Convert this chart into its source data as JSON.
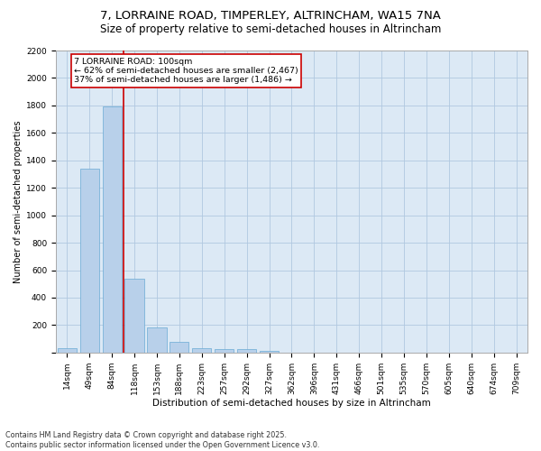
{
  "title": "7, LORRAINE ROAD, TIMPERLEY, ALTRINCHAM, WA15 7NA",
  "subtitle": "Size of property relative to semi-detached houses in Altrincham",
  "xlabel": "Distribution of semi-detached houses by size in Altrincham",
  "ylabel": "Number of semi-detached properties",
  "bar_color": "#b8d0ea",
  "bar_edge_color": "#6aaad4",
  "background_color": "#ffffff",
  "plot_bg_color": "#dce9f5",
  "grid_color": "#b0c8e0",
  "bin_labels": [
    "14sqm",
    "49sqm",
    "84sqm",
    "118sqm",
    "153sqm",
    "188sqm",
    "223sqm",
    "257sqm",
    "292sqm",
    "327sqm",
    "362sqm",
    "396sqm",
    "431sqm",
    "466sqm",
    "501sqm",
    "535sqm",
    "570sqm",
    "605sqm",
    "640sqm",
    "674sqm",
    "709sqm"
  ],
  "bar_values": [
    30,
    1340,
    1790,
    535,
    180,
    80,
    35,
    28,
    22,
    15,
    0,
    0,
    0,
    0,
    0,
    0,
    0,
    0,
    0,
    0,
    0
  ],
  "subject_line_color": "#cc0000",
  "annotation_title": "7 LORRAINE ROAD: 100sqm",
  "annotation_line1": "← 62% of semi-detached houses are smaller (2,467)",
  "annotation_line2": "37% of semi-detached houses are larger (1,486) →",
  "annotation_box_color": "#cc0000",
  "ylim": [
    0,
    2200
  ],
  "yticks": [
    0,
    200,
    400,
    600,
    800,
    1000,
    1200,
    1400,
    1600,
    1800,
    2000,
    2200
  ],
  "footer_line1": "Contains HM Land Registry data © Crown copyright and database right 2025.",
  "footer_line2": "Contains public sector information licensed under the Open Government Licence v3.0.",
  "title_fontsize": 9.5,
  "subtitle_fontsize": 8.5,
  "footer_fontsize": 5.8,
  "ylabel_fontsize": 7,
  "xlabel_fontsize": 7.5,
  "tick_fontsize": 6.5,
  "annot_fontsize": 6.8
}
